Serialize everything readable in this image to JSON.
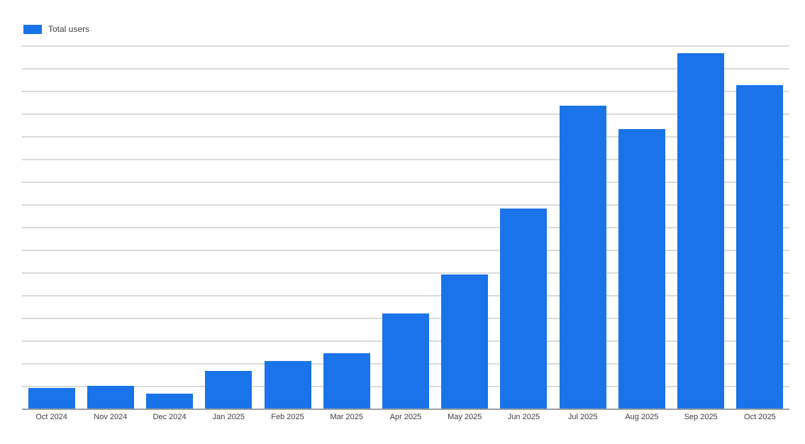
{
  "chart_data": {
    "type": "bar",
    "title": "",
    "categories": [
      "Oct 2024",
      "Nov 2024",
      "Dec 2024",
      "Jan 2025",
      "Feb 2025",
      "Mar 2025",
      "Apr 2025",
      "May 2025",
      "Jun 2025",
      "Jul 2025",
      "Aug 2025",
      "Sep 2025",
      "Oct 2025"
    ],
    "series": [
      {
        "name": "Total users",
        "values": [
          0.9,
          1.0,
          0.65,
          1.65,
          2.1,
          2.45,
          4.2,
          5.9,
          8.8,
          13.35,
          12.3,
          15.65,
          14.25
        ]
      }
    ],
    "xlabel": "",
    "ylabel": "",
    "ylim": [
      0,
      16
    ],
    "y_tick_labels_visible": false,
    "gridlines": {
      "horizontal": true,
      "count": 16,
      "interval": 1
    },
    "legend_position": "top-left",
    "note": "Y axis has no visible tick labels; values are estimated in gridline intervals (1 unit = one gridline spacing)."
  },
  "legend": {
    "label": "Total users"
  },
  "colors": {
    "bar": "#1a73e8",
    "gridline": "#dadada",
    "axis_line": "#9e9e9e",
    "label_text": "#3c4043",
    "background": "#ffffff"
  }
}
